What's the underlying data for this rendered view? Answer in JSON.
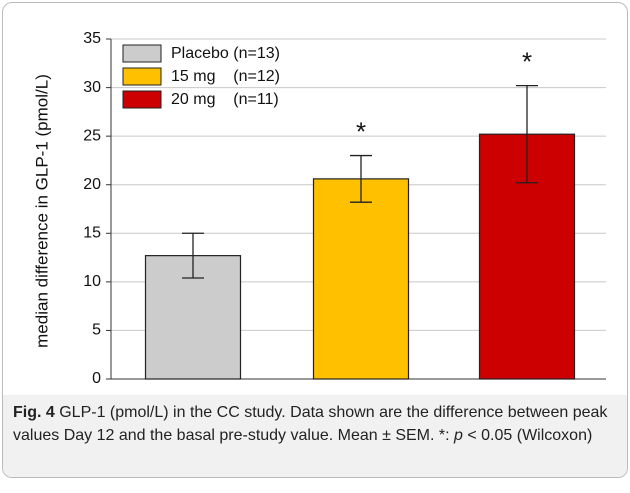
{
  "chart_data": {
    "type": "bar",
    "ylabel": "median difference in GLP-1 (pmol/L)",
    "categories": [
      "Placebo (n=13)",
      "15 mg    (n=12)",
      "20 mg    (n=11)"
    ],
    "values": [
      12.7,
      20.6,
      25.2
    ],
    "errors": [
      2.3,
      2.4,
      5.0
    ],
    "significance": [
      null,
      "*",
      "*"
    ],
    "colors": [
      "#cccccc",
      "#ffc000",
      "#cc0000"
    ],
    "ylim": [
      0,
      35
    ],
    "yticks": [
      0,
      5,
      10,
      15,
      20,
      25,
      30,
      35
    ],
    "grid": true,
    "legend": "upper left"
  },
  "caption": {
    "label": "Fig. 4",
    "text1": "GLP-1 (pmol/L) in the CC study. Data shown are the difference between peak values Day 12 and the basal pre-study value. Mean ± SEM. *: ",
    "italic": "p",
    "text2": " < 0.05 (Wilcoxon)"
  }
}
